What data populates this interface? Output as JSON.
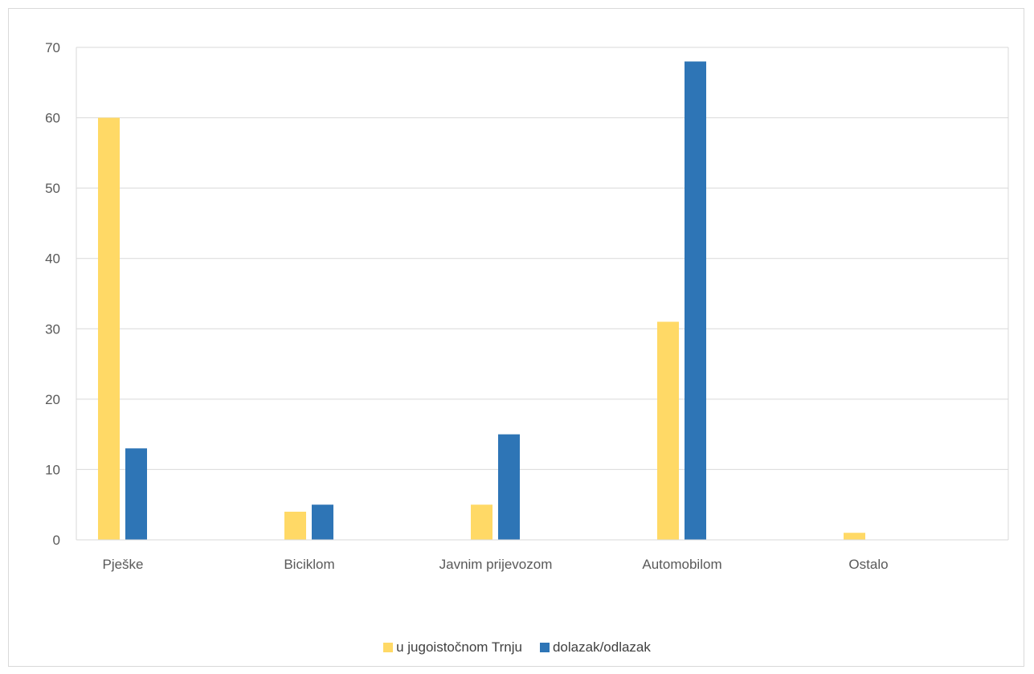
{
  "chart_data": {
    "type": "bar",
    "categories": [
      "Pješke",
      "Biciklom",
      "Javnim prijevozom",
      "Automobilom",
      "Ostalo"
    ],
    "series": [
      {
        "name": "u jugoistočnom Trnju",
        "color": "#ffd966",
        "values": [
          60,
          4,
          5,
          31,
          1
        ]
      },
      {
        "name": "dolazak/odlazak",
        "color": "#2e75b6",
        "values": [
          13,
          5,
          15,
          68,
          0
        ]
      }
    ],
    "title": "",
    "xlabel": "",
    "ylabel": "",
    "ylim": [
      0,
      70
    ],
    "yticks": [
      "0",
      "10",
      "20",
      "30",
      "40",
      "50",
      "60",
      "70"
    ],
    "grid": true,
    "legend_position": "bottom"
  }
}
